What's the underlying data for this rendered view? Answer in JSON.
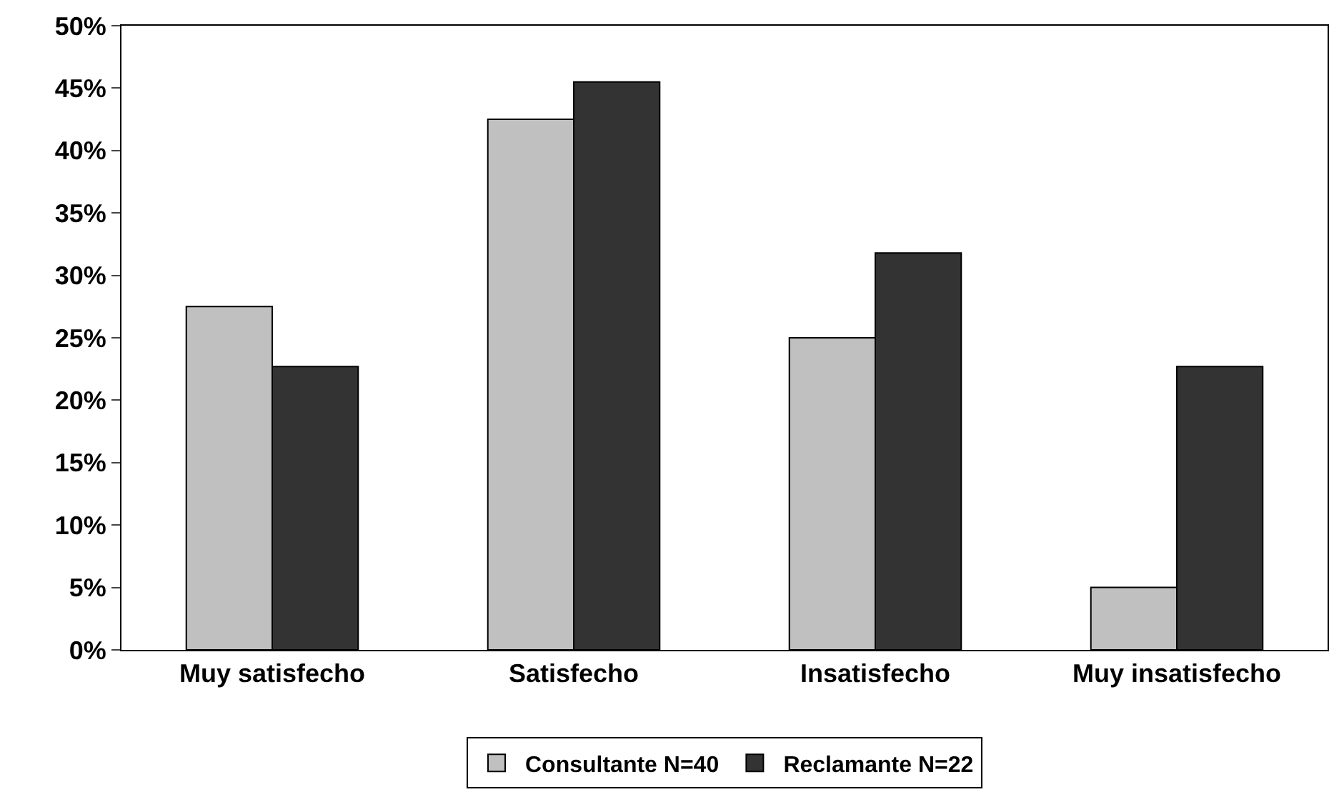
{
  "chart_data": {
    "type": "bar",
    "categories": [
      "Muy satisfecho",
      "Satisfecho",
      "Insatisfecho",
      "Muy insatisfecho"
    ],
    "series": [
      {
        "name": "Consultante N=40",
        "color": "#c0c0c0",
        "values": [
          27.5,
          42.5,
          25,
          5
        ]
      },
      {
        "name": "Reclamante N=22",
        "color": "#333333",
        "values": [
          22.7,
          45.5,
          31.8,
          22.7
        ]
      }
    ],
    "ylim": [
      0,
      50
    ],
    "yticks": [
      {
        "value": 0,
        "label": "0%"
      },
      {
        "value": 5,
        "label": "5%"
      },
      {
        "value": 10,
        "label": "10%"
      },
      {
        "value": 15,
        "label": "15%"
      },
      {
        "value": 20,
        "label": "20%"
      },
      {
        "value": 25,
        "label": "25%"
      },
      {
        "value": 30,
        "label": "30%"
      },
      {
        "value": 35,
        "label": "35%"
      },
      {
        "value": 40,
        "label": "40%"
      },
      {
        "value": 45,
        "label": "45%"
      },
      {
        "value": 50,
        "label": "50%"
      }
    ],
    "legend": "bottom"
  }
}
